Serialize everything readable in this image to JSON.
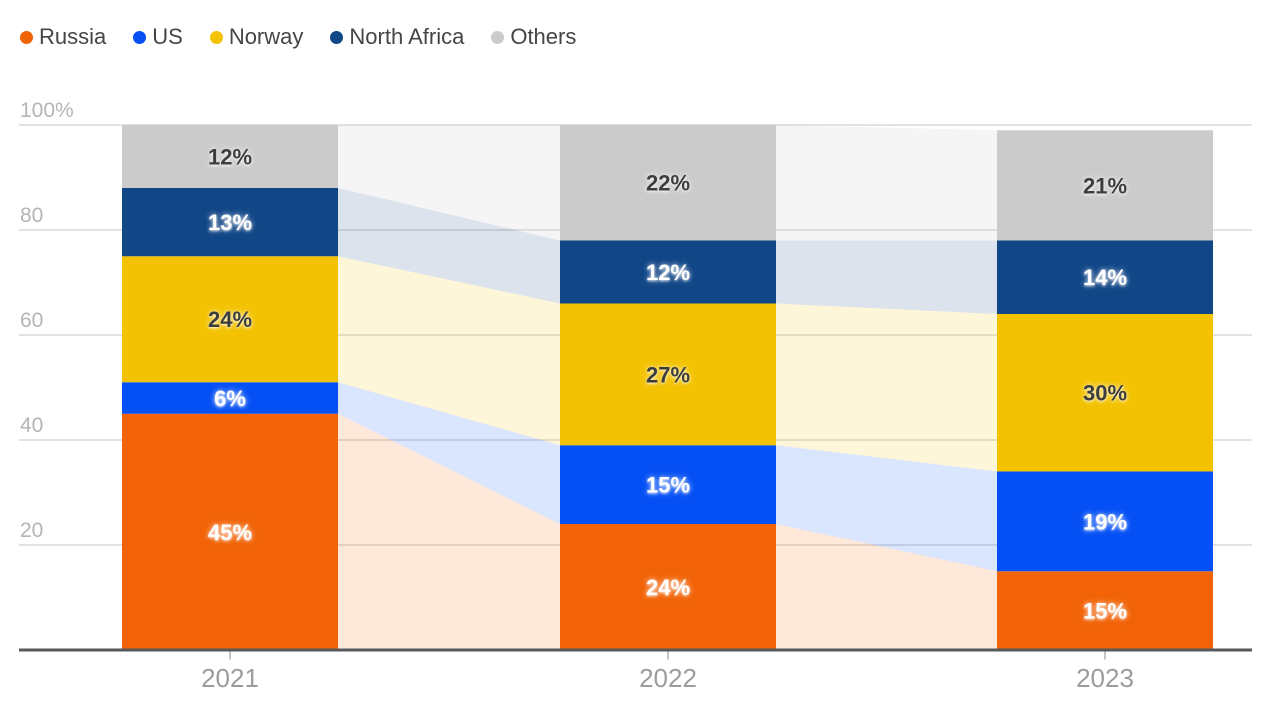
{
  "legend": {
    "items": [
      {
        "label": "Russia",
        "color": "#f26307"
      },
      {
        "label": "US",
        "color": "#0550f5"
      },
      {
        "label": "Norway",
        "color": "#f3c202"
      },
      {
        "label": "North Africa",
        "color": "#114687"
      },
      {
        "label": "Others",
        "color": "#cbcbcb"
      }
    ]
  },
  "chart_data": {
    "type": "bar",
    "variant": "100-percent-stacked-with-flow-bands",
    "title": "",
    "categories": [
      "2021",
      "2022",
      "2023"
    ],
    "stack_order_bottom_to_top": [
      "Russia",
      "US",
      "Norway",
      "North Africa",
      "Others"
    ],
    "series": [
      {
        "name": "Russia",
        "color": "#f26307",
        "label_color": "#ffffff",
        "band_opacity": 0.15,
        "values": [
          45,
          24,
          15
        ]
      },
      {
        "name": "US",
        "color": "#0550f5",
        "label_color": "#ffffff",
        "band_opacity": 0.15,
        "values": [
          6,
          15,
          19
        ]
      },
      {
        "name": "Norway",
        "color": "#f3c202",
        "label_color": "#3d3d3d",
        "band_opacity": 0.15,
        "values": [
          24,
          27,
          30
        ]
      },
      {
        "name": "North Africa",
        "color": "#114687",
        "label_color": "#ffffff",
        "band_opacity": 0.15,
        "values": [
          13,
          12,
          14
        ]
      },
      {
        "name": "Others",
        "color": "#cbcbcb",
        "label_color": "#3d3d3d",
        "band_opacity": 0.2,
        "values": [
          12,
          22,
          21
        ]
      }
    ],
    "value_suffix": "%",
    "y_axis": {
      "range": [
        0,
        100
      ],
      "grid": true,
      "ticks": [
        {
          "value": 100,
          "label": "100%"
        },
        {
          "value": 80,
          "label": "80"
        },
        {
          "value": 60,
          "label": "60"
        },
        {
          "value": 40,
          "label": "40"
        },
        {
          "value": 20,
          "label": "20"
        }
      ]
    },
    "x_axis": {
      "labels": [
        "2021",
        "2022",
        "2023"
      ]
    },
    "legend_position": "top-left",
    "styles": {
      "grid_color": "#d9d9d9",
      "axis_color": "#57585c",
      "tick_color": "#c4c4c4",
      "y_label_color": "#b5b5b5",
      "x_label_color": "#9c9c9c",
      "legend_text_color": "#454545",
      "background": "#ffffff"
    }
  }
}
